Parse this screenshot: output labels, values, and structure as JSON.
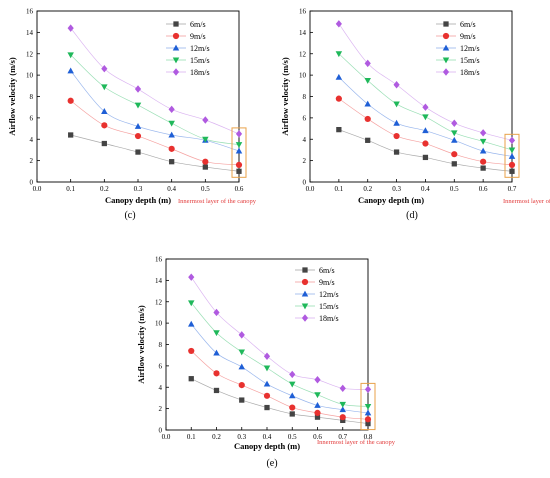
{
  "series_style": [
    {
      "name": "6m/s",
      "color": "#444444",
      "marker": "square"
    },
    {
      "name": "9m/s",
      "color": "#e8312f",
      "marker": "circle"
    },
    {
      "name": "12m/s",
      "color": "#1f5fd6",
      "marker": "triangle-up"
    },
    {
      "name": "15m/s",
      "color": "#1fb85a",
      "marker": "triangle-down"
    },
    {
      "name": "18m/s",
      "color": "#b05ae0",
      "marker": "diamond"
    }
  ],
  "highlight_color": "#e8a24a",
  "annotation_color": "#e23b3b",
  "chart_data": [
    {
      "type": "scatter",
      "panel_label": "(c)",
      "xlabel": "Canopy depth (m)",
      "ylabel": "Airflow velocity (m/s)",
      "xlim": [
        0.0,
        0.6
      ],
      "ylim": [
        0,
        16
      ],
      "x_ticks": [
        "0.0",
        "0.1",
        "0.2",
        "0.3",
        "0.4",
        "0.5",
        "0.6"
      ],
      "y_ticks": [
        "0",
        "2",
        "4",
        "6",
        "8",
        "10",
        "12",
        "14",
        "16"
      ],
      "annotation": "Innermost layer of the canopy",
      "x": [
        0.1,
        0.2,
        0.3,
        0.4,
        0.5,
        0.6
      ],
      "series": [
        {
          "name": "6m/s",
          "values": [
            4.4,
            3.6,
            2.8,
            1.9,
            1.4,
            1.0
          ]
        },
        {
          "name": "9m/s",
          "values": [
            7.6,
            5.3,
            4.3,
            3.1,
            1.9,
            1.6
          ]
        },
        {
          "name": "12m/s",
          "values": [
            10.4,
            6.6,
            5.2,
            4.4,
            3.9,
            2.9
          ]
        },
        {
          "name": "15m/s",
          "values": [
            11.9,
            8.9,
            7.2,
            5.5,
            4.0,
            3.5
          ]
        },
        {
          "name": "18m/s",
          "values": [
            14.4,
            10.6,
            8.7,
            6.8,
            5.8,
            4.5
          ]
        }
      ],
      "grid": false,
      "legend_position": "top-right"
    },
    {
      "type": "scatter",
      "panel_label": "(d)",
      "xlabel": "Canopy depth (m)",
      "ylabel": "Airflow velocity (m/s)",
      "xlim": [
        0.0,
        0.7
      ],
      "ylim": [
        0,
        16
      ],
      "x_ticks": [
        "0.0",
        "0.1",
        "0.2",
        "0.3",
        "0.4",
        "0.5",
        "0.6",
        "0.7"
      ],
      "y_ticks": [
        "0",
        "2",
        "4",
        "6",
        "8",
        "10",
        "12",
        "14",
        "16"
      ],
      "annotation": "Innermost layer of the canopy",
      "x": [
        0.1,
        0.2,
        0.3,
        0.4,
        0.5,
        0.6,
        0.7
      ],
      "series": [
        {
          "name": "6m/s",
          "values": [
            4.9,
            3.9,
            2.8,
            2.3,
            1.7,
            1.3,
            1.0
          ]
        },
        {
          "name": "9m/s",
          "values": [
            7.8,
            5.9,
            4.3,
            3.6,
            2.6,
            1.9,
            1.6
          ]
        },
        {
          "name": "12m/s",
          "values": [
            9.8,
            7.3,
            5.5,
            4.8,
            3.9,
            2.9,
            2.4
          ]
        },
        {
          "name": "15m/s",
          "values": [
            12.0,
            9.5,
            7.3,
            6.1,
            4.6,
            3.8,
            3.0
          ]
        },
        {
          "name": "18m/s",
          "values": [
            14.8,
            11.1,
            9.1,
            7.0,
            5.5,
            4.6,
            3.9
          ]
        }
      ],
      "grid": false,
      "legend_position": "top-right"
    },
    {
      "type": "scatter",
      "panel_label": "(e)",
      "xlabel": "Canopy depth (m)",
      "ylabel": "Airflow velocity (m/s)",
      "xlim": [
        0.0,
        0.8
      ],
      "ylim": [
        0,
        16
      ],
      "x_ticks": [
        "0.0",
        "0.1",
        "0.2",
        "0.3",
        "0.4",
        "0.5",
        "0.6",
        "0.7",
        "0.8"
      ],
      "y_ticks": [
        "0",
        "2",
        "4",
        "6",
        "8",
        "10",
        "12",
        "14",
        "16"
      ],
      "annotation": "Innermost layer of the canopy",
      "x": [
        0.1,
        0.2,
        0.3,
        0.4,
        0.5,
        0.6,
        0.7,
        0.8
      ],
      "series": [
        {
          "name": "6m/s",
          "values": [
            4.8,
            3.7,
            2.8,
            2.1,
            1.5,
            1.2,
            0.9,
            0.6
          ]
        },
        {
          "name": "9m/s",
          "values": [
            7.4,
            5.3,
            4.2,
            3.2,
            2.1,
            1.6,
            1.2,
            1.0
          ]
        },
        {
          "name": "12m/s",
          "values": [
            9.9,
            7.2,
            5.9,
            4.3,
            3.2,
            2.3,
            1.9,
            1.6
          ]
        },
        {
          "name": "15m/s",
          "values": [
            11.9,
            9.1,
            7.3,
            5.8,
            4.3,
            3.3,
            2.4,
            2.2
          ]
        },
        {
          "name": "18m/s",
          "values": [
            14.3,
            11.0,
            8.9,
            6.9,
            5.2,
            4.7,
            3.9,
            3.8
          ]
        }
      ],
      "grid": false,
      "legend_position": "top-right"
    }
  ]
}
